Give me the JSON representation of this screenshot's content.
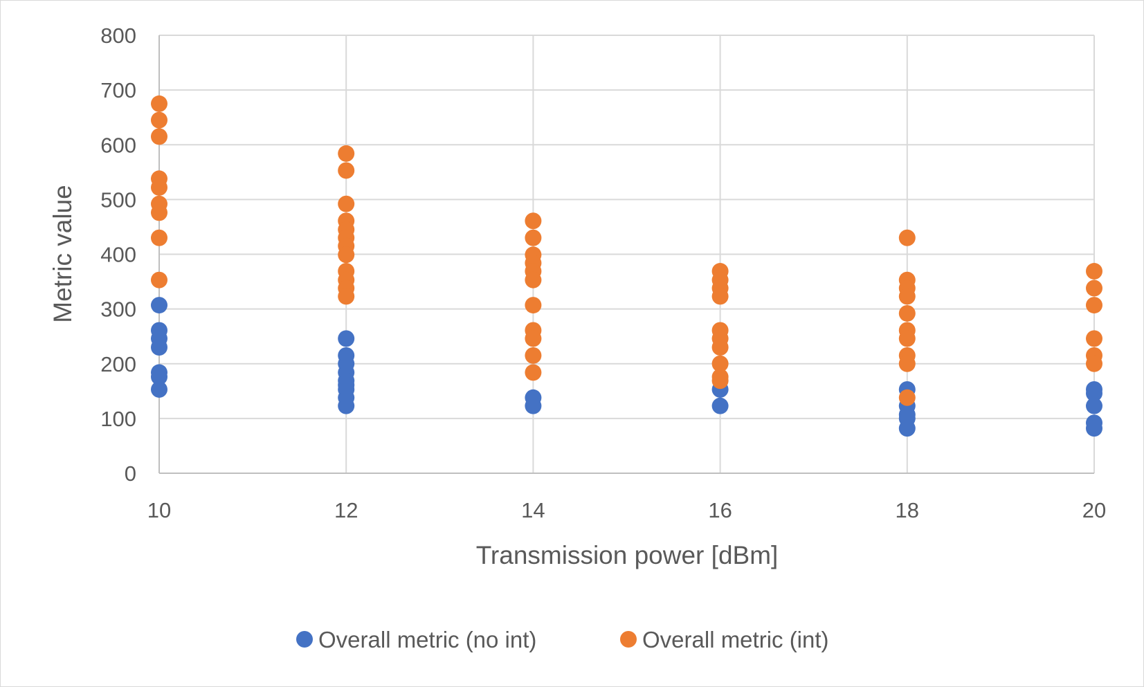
{
  "chart_data": {
    "type": "scatter",
    "title": "",
    "xlabel": "Transmission power [dBm]",
    "ylabel": "Metric value",
    "xlim": [
      10,
      20
    ],
    "ylim": [
      0,
      800
    ],
    "x_ticks": [
      10,
      12,
      14,
      16,
      18,
      20
    ],
    "y_ticks": [
      0,
      100,
      200,
      300,
      400,
      500,
      600,
      700,
      800
    ],
    "grid": true,
    "legend_position": "bottom",
    "series": [
      {
        "name": "Overall metric (no int)",
        "color": "#4472C4",
        "points": [
          [
            10,
            307
          ],
          [
            10,
            261
          ],
          [
            10,
            246
          ],
          [
            10,
            230
          ],
          [
            10,
            184
          ],
          [
            10,
            176
          ],
          [
            10,
            153
          ],
          [
            12,
            246
          ],
          [
            12,
            215
          ],
          [
            12,
            200
          ],
          [
            12,
            184
          ],
          [
            12,
            169
          ],
          [
            12,
            161
          ],
          [
            12,
            153
          ],
          [
            12,
            138
          ],
          [
            12,
            123
          ],
          [
            14,
            138
          ],
          [
            14,
            123
          ],
          [
            16,
            153
          ],
          [
            16,
            123
          ],
          [
            18,
            153
          ],
          [
            18,
            123
          ],
          [
            18,
            107
          ],
          [
            18,
            100
          ],
          [
            18,
            82
          ],
          [
            20,
            153
          ],
          [
            20,
            146
          ],
          [
            20,
            123
          ],
          [
            20,
            92
          ],
          [
            20,
            82
          ]
        ]
      },
      {
        "name": "Overall metric (int)",
        "color": "#ED7D31",
        "points": [
          [
            10,
            675
          ],
          [
            10,
            645
          ],
          [
            10,
            615
          ],
          [
            10,
            538
          ],
          [
            10,
            522
          ],
          [
            10,
            492
          ],
          [
            10,
            476
          ],
          [
            10,
            430
          ],
          [
            10,
            353
          ],
          [
            12,
            584
          ],
          [
            12,
            553
          ],
          [
            12,
            492
          ],
          [
            12,
            461
          ],
          [
            12,
            445
          ],
          [
            12,
            430
          ],
          [
            12,
            415
          ],
          [
            12,
            399
          ],
          [
            12,
            369
          ],
          [
            12,
            353
          ],
          [
            12,
            338
          ],
          [
            12,
            323
          ],
          [
            14,
            461
          ],
          [
            14,
            430
          ],
          [
            14,
            399
          ],
          [
            14,
            384
          ],
          [
            14,
            369
          ],
          [
            14,
            353
          ],
          [
            14,
            307
          ],
          [
            14,
            261
          ],
          [
            14,
            246
          ],
          [
            14,
            215
          ],
          [
            14,
            184
          ],
          [
            16,
            369
          ],
          [
            16,
            353
          ],
          [
            16,
            338
          ],
          [
            16,
            323
          ],
          [
            16,
            261
          ],
          [
            16,
            246
          ],
          [
            16,
            230
          ],
          [
            16,
            200
          ],
          [
            16,
            176
          ],
          [
            16,
            169
          ],
          [
            18,
            430
          ],
          [
            18,
            353
          ],
          [
            18,
            338
          ],
          [
            18,
            323
          ],
          [
            18,
            292
          ],
          [
            18,
            261
          ],
          [
            18,
            246
          ],
          [
            18,
            215
          ],
          [
            18,
            200
          ],
          [
            18,
            138
          ],
          [
            20,
            369
          ],
          [
            20,
            338
          ],
          [
            20,
            307
          ],
          [
            20,
            246
          ],
          [
            20,
            215
          ],
          [
            20,
            200
          ]
        ]
      }
    ]
  }
}
